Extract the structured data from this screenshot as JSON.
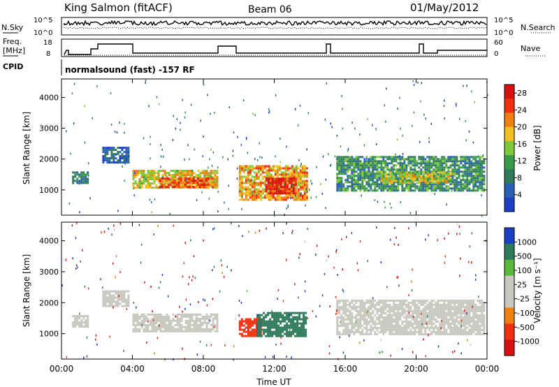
{
  "header": {
    "station": "King Salmon (fitACF)",
    "beam": "Beam 06",
    "date": "01/May/2012"
  },
  "status_panels": {
    "noise_left_label": "N.Sky",
    "noise_right_label": "N.Search",
    "noise_left_ticks": [
      "10^5",
      "10^0"
    ],
    "noise_right_ticks": [
      "10^5",
      "10^0"
    ],
    "freq_label_line1": "Freq.",
    "freq_label_line2": "[MHz]",
    "freq_ticks": [
      "18",
      "8"
    ],
    "nave_label": "Nave",
    "nave_ticks": [
      "60",
      "0"
    ],
    "cpid_label": "CPID",
    "cpid_text": "normalsound (fast) -157 RF"
  },
  "colors": {
    "power_scale": [
      "#1a3fc4",
      "#2a5fb8",
      "#2e7a5a",
      "#3a9a4a",
      "#7fc83a",
      "#f0c020",
      "#f08010",
      "#f03010",
      "#d81010"
    ],
    "velocity_scale": [
      "#1a3fc4",
      "#2e7a5a",
      "#5ab83c",
      "#c8c8c0",
      "#c8c8c0",
      "#f08010",
      "#f03010",
      "#d81010"
    ],
    "ground_scatter": "#c8c8c0"
  },
  "chart_data": [
    {
      "type": "heatmap",
      "title": "",
      "xlabel": "Time UT",
      "ylabel": "Slant Range [km]",
      "x_ticks": [
        "00:00",
        "04:00",
        "08:00",
        "12:00",
        "16:00",
        "20:00",
        "00:00"
      ],
      "y_ticks": [
        "1000",
        "2000",
        "3000",
        "4000"
      ],
      "xlim": [
        0,
        24
      ],
      "ylim": [
        180,
        4600
      ],
      "colorbar": {
        "label": "Power [dB]",
        "ticks": [
          "4",
          "8",
          "12",
          "16",
          "20",
          "24",
          "28"
        ],
        "range": [
          0,
          30
        ]
      },
      "regions": [
        {
          "t": [
            0.6,
            1.5
          ],
          "range": [
            1250,
            1600
          ],
          "value": 8
        },
        {
          "t": [
            2.3,
            3.8
          ],
          "range": [
            1900,
            2400
          ],
          "value": 5
        },
        {
          "t": [
            4.0,
            8.8
          ],
          "range": [
            1100,
            1650
          ],
          "value": 18
        },
        {
          "t": [
            5.5,
            8.5
          ],
          "range": [
            1100,
            1400
          ],
          "value": 24
        },
        {
          "t": [
            10.0,
            13.8
          ],
          "range": [
            700,
            1800
          ],
          "value": 20
        },
        {
          "t": [
            11.5,
            13.2
          ],
          "range": [
            900,
            1400
          ],
          "value": 27
        },
        {
          "t": [
            15.5,
            23.8
          ],
          "range": [
            1000,
            2100
          ],
          "value": 10
        },
        {
          "t": [
            18.0,
            22.0
          ],
          "range": [
            1200,
            1600
          ],
          "value": 17
        }
      ]
    },
    {
      "type": "heatmap",
      "title": "",
      "xlabel": "Time UT",
      "ylabel": "Slant Range [km]",
      "x_ticks": [
        "00:00",
        "04:00",
        "08:00",
        "12:00",
        "16:00",
        "20:00",
        "00:00"
      ],
      "y_ticks": [
        "1000",
        "2000",
        "3000",
        "4000"
      ],
      "xlim": [
        0,
        24
      ],
      "ylim": [
        180,
        4600
      ],
      "colorbar": {
        "label": "Velocity [m s⁻¹]",
        "ticks": [
          "1000",
          "500",
          "100",
          "25",
          "-25",
          "-100",
          "-500",
          "-1000"
        ]
      },
      "regions": [
        {
          "t": [
            0.6,
            1.5
          ],
          "range": [
            1250,
            1600
          ],
          "value": "ground"
        },
        {
          "t": [
            2.3,
            3.8
          ],
          "range": [
            1900,
            2400
          ],
          "value": "ground"
        },
        {
          "t": [
            4.0,
            8.8
          ],
          "range": [
            1100,
            1650
          ],
          "value": "ground"
        },
        {
          "t": [
            10.0,
            11.2
          ],
          "range": [
            900,
            1500
          ],
          "value": -300
        },
        {
          "t": [
            11.0,
            13.8
          ],
          "range": [
            900,
            1700
          ],
          "value": 200
        },
        {
          "t": [
            15.5,
            23.8
          ],
          "range": [
            1000,
            2100
          ],
          "value": "ground"
        }
      ]
    }
  ]
}
